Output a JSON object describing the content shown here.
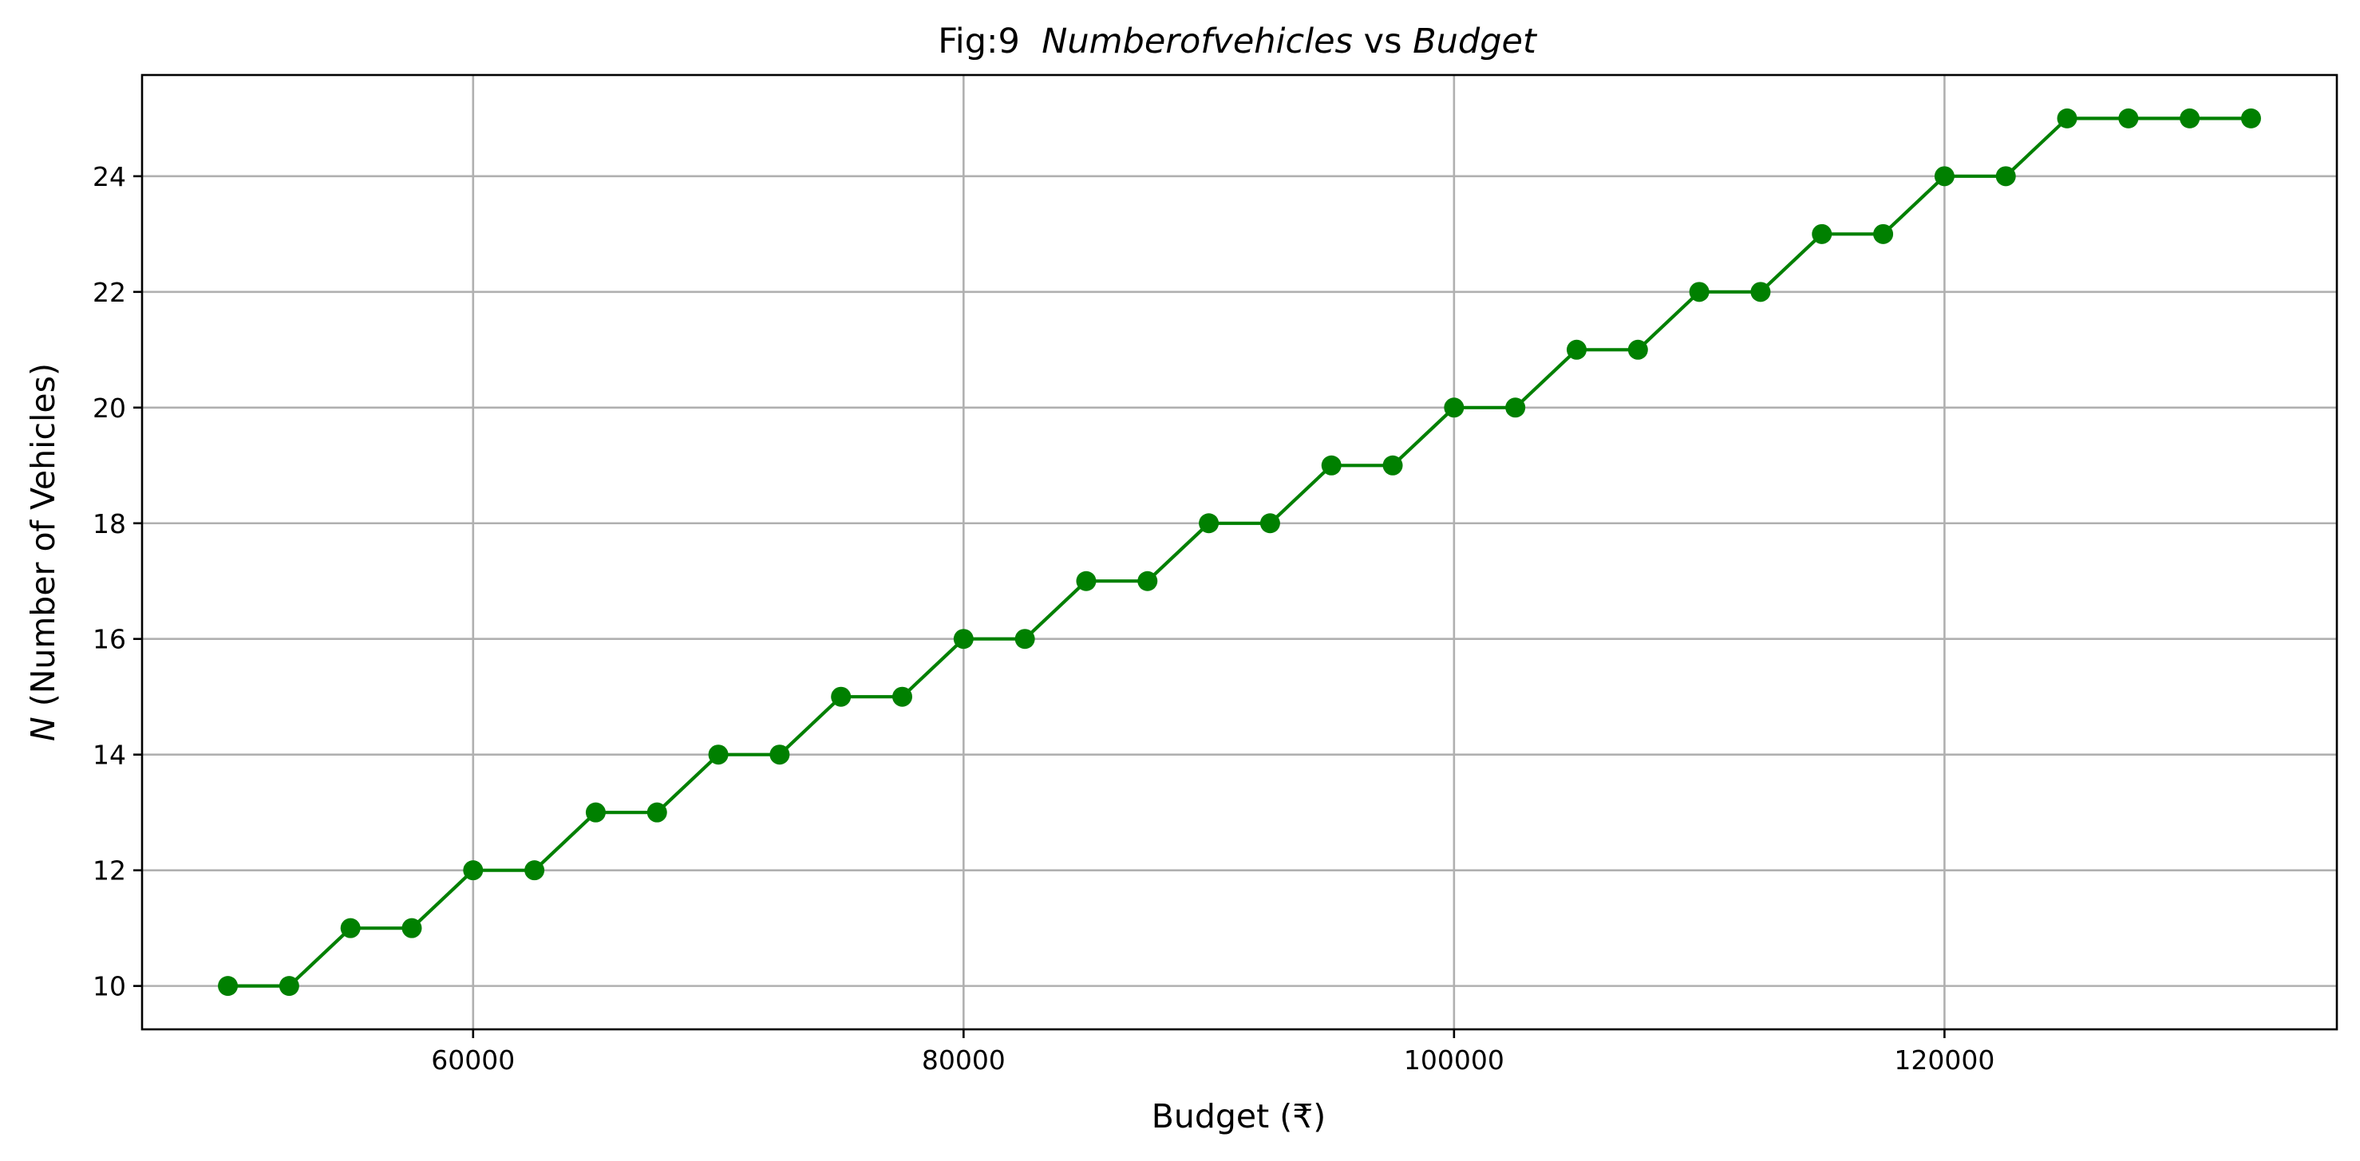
{
  "chart_data": {
    "type": "line",
    "title": {
      "prefix": "Fig:9  ",
      "term1": "Numberofvehicles",
      "middle": " vs ",
      "term2": "Budget"
    },
    "xlabel": "Budget (₹)",
    "ylabel": {
      "var": "N",
      "rest": " (Number of Vehicles)"
    },
    "xlim": [
      46500,
      136000
    ],
    "ylim": [
      9.25,
      25.75
    ],
    "xticks": [
      60000,
      80000,
      100000,
      120000
    ],
    "xtick_labels": [
      "60000",
      "80000",
      "100000",
      "120000"
    ],
    "yticks": [
      10,
      12,
      14,
      16,
      18,
      20,
      22,
      24
    ],
    "ytick_labels": [
      "10",
      "12",
      "14",
      "16",
      "18",
      "20",
      "22",
      "24"
    ],
    "grid": true,
    "color": "#008000",
    "marker": "circle",
    "series": [
      {
        "x": [
          50000,
          52500,
          55000,
          57500,
          60000,
          62500,
          65000,
          67500,
          70000,
          72500,
          75000,
          77500,
          80000,
          82500,
          85000,
          87500,
          90000,
          92500,
          95000,
          97500,
          100000,
          102500,
          105000,
          107500,
          110000,
          112500,
          115000,
          117500,
          120000,
          122500,
          125000,
          127500,
          130000,
          132500
        ],
        "y": [
          10,
          10,
          11,
          11,
          12,
          12,
          13,
          13,
          14,
          14,
          15,
          15,
          16,
          16,
          17,
          17,
          18,
          18,
          19,
          19,
          20,
          20,
          21,
          21,
          22,
          22,
          23,
          23,
          24,
          24,
          25,
          25,
          25,
          25
        ]
      }
    ]
  }
}
